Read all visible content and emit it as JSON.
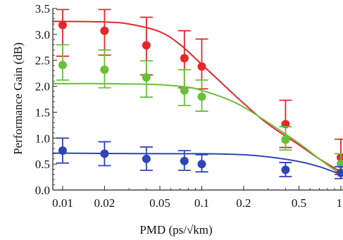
{
  "chart_data": {
    "type": "scatter",
    "title": "",
    "xlabel": "PMD  (ps/√km)",
    "ylabel": "Performance Gain (dB)",
    "x_scale": "log",
    "xlim": [
      0.0085,
      1.0
    ],
    "ylim": [
      0.0,
      3.5
    ],
    "x_ticks": [
      0.01,
      0.02,
      0.05,
      0.1,
      0.2,
      0.5,
      1
    ],
    "x_tick_labels": [
      "0.01",
      "0.02",
      "0.05",
      "0.1",
      "0.2",
      "0.5",
      "1"
    ],
    "y_ticks": [
      0.0,
      0.5,
      1.0,
      1.5,
      2.0,
      2.5,
      3.0,
      3.5
    ],
    "y_tick_labels": [
      "0.0",
      "0.5",
      "1.0",
      "1.5",
      "2.0",
      "2.5",
      "3.0",
      "3.5"
    ],
    "grid": false,
    "legend": "none",
    "series": [
      {
        "color": "#e8262a",
        "points": [
          {
            "x": 0.01,
            "y": 3.18,
            "err_low": 2.58,
            "err_high": 3.48
          },
          {
            "x": 0.02,
            "y": 3.07,
            "err_low": 2.6,
            "err_high": 3.48
          },
          {
            "x": 0.04,
            "y": 2.79,
            "err_low": 2.22,
            "err_high": 3.33
          },
          {
            "x": 0.075,
            "y": 2.54,
            "err_low": 1.97,
            "err_high": 3.07
          },
          {
            "x": 0.1,
            "y": 2.38,
            "err_low": 1.95,
            "err_high": 2.91
          },
          {
            "x": 0.4,
            "y": 1.27,
            "err_low": 0.82,
            "err_high": 1.73
          },
          {
            "x": 1.0,
            "y": 0.63,
            "err_low": 0.3,
            "err_high": 0.98
          }
        ],
        "fit": [
          [
            0.0085,
            3.25
          ],
          [
            0.01,
            3.25
          ],
          [
            0.02,
            3.24
          ],
          [
            0.03,
            3.2
          ],
          [
            0.05,
            3.05
          ],
          [
            0.07,
            2.8
          ],
          [
            0.1,
            2.42
          ],
          [
            0.15,
            1.98
          ],
          [
            0.2,
            1.67
          ],
          [
            0.3,
            1.27
          ],
          [
            0.5,
            0.87
          ],
          [
            0.7,
            0.6
          ],
          [
            1.0,
            0.35
          ]
        ]
      },
      {
        "color": "#6abf3a",
        "points": [
          {
            "x": 0.01,
            "y": 2.41,
            "err_low": 2.12,
            "err_high": 2.8
          },
          {
            "x": 0.02,
            "y": 2.32,
            "err_low": 1.97,
            "err_high": 2.7
          },
          {
            "x": 0.04,
            "y": 2.17,
            "err_low": 1.79,
            "err_high": 2.49
          },
          {
            "x": 0.075,
            "y": 1.92,
            "err_low": 1.63,
            "err_high": 2.32
          },
          {
            "x": 0.1,
            "y": 1.8,
            "err_low": 1.52,
            "err_high": 2.12
          },
          {
            "x": 0.4,
            "y": 0.97,
            "err_low": 0.77,
            "err_high": 1.22
          },
          {
            "x": 1.0,
            "y": 0.5,
            "err_low": 0.34,
            "err_high": 0.7
          }
        ],
        "fit": [
          [
            0.0085,
            2.05
          ],
          [
            0.01,
            2.05
          ],
          [
            0.02,
            2.05
          ],
          [
            0.05,
            2.03
          ],
          [
            0.08,
            1.98
          ],
          [
            0.1,
            1.92
          ],
          [
            0.15,
            1.76
          ],
          [
            0.2,
            1.6
          ],
          [
            0.3,
            1.3
          ],
          [
            0.5,
            0.9
          ],
          [
            0.7,
            0.6
          ],
          [
            1.0,
            0.3
          ]
        ]
      },
      {
        "color": "#2f44b5",
        "points": [
          {
            "x": 0.01,
            "y": 0.76,
            "err_low": 0.52,
            "err_high": 1.0
          },
          {
            "x": 0.02,
            "y": 0.7,
            "err_low": 0.47,
            "err_high": 0.93
          },
          {
            "x": 0.04,
            "y": 0.6,
            "err_low": 0.38,
            "err_high": 0.83
          },
          {
            "x": 0.075,
            "y": 0.56,
            "err_low": 0.38,
            "err_high": 0.76
          },
          {
            "x": 0.1,
            "y": 0.5,
            "err_low": 0.35,
            "err_high": 0.68
          },
          {
            "x": 0.4,
            "y": 0.39,
            "err_low": 0.26,
            "err_high": 0.53
          },
          {
            "x": 1.0,
            "y": 0.33,
            "err_low": 0.22,
            "err_high": 0.45
          }
        ],
        "fit": [
          [
            0.0085,
            0.71
          ],
          [
            0.01,
            0.71
          ],
          [
            0.05,
            0.7
          ],
          [
            0.1,
            0.7
          ],
          [
            0.2,
            0.68
          ],
          [
            0.3,
            0.64
          ],
          [
            0.5,
            0.55
          ],
          [
            0.7,
            0.45
          ],
          [
            1.0,
            0.3
          ]
        ]
      }
    ]
  }
}
